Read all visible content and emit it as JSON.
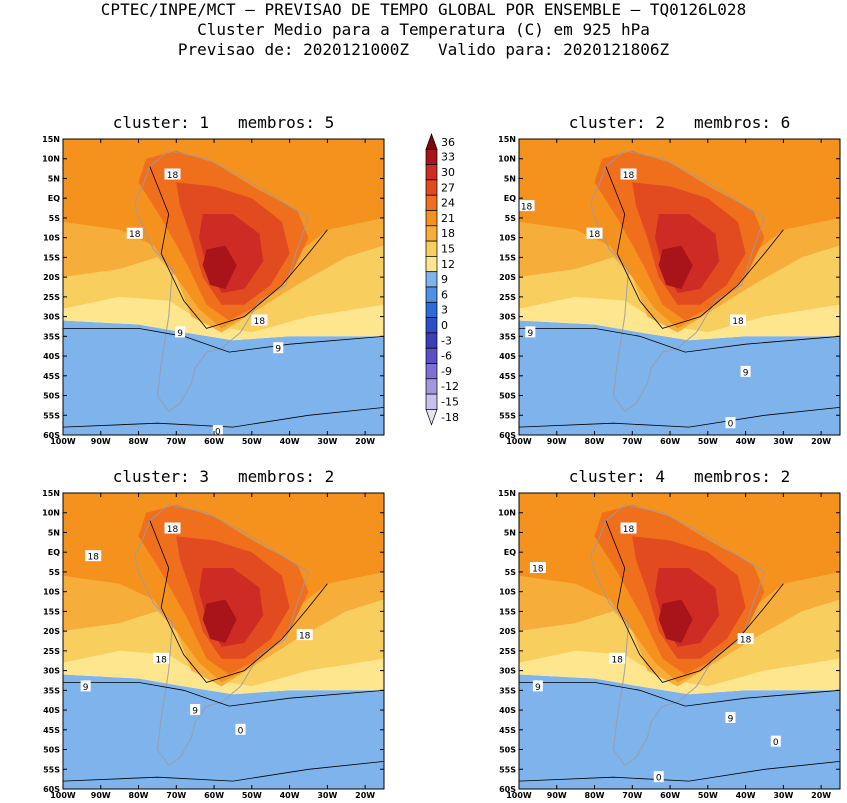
{
  "header": {
    "line1": "CPTEC/INPE/MCT – PREVISAO DE TEMPO GLOBAL POR ENSEMBLE – TQ0126L028",
    "line2": "Cluster Medio para a Temperatura (C) em 925 hPa",
    "line3": "Previsao de: 2020121000Z   Valido para: 2020121806Z"
  },
  "axes": {
    "lat_labels": [
      "15N",
      "10N",
      "5N",
      "EQ",
      "5S",
      "10S",
      "15S",
      "20S",
      "25S",
      "30S",
      "35S",
      "40S",
      "45S",
      "50S",
      "55S",
      "60S"
    ],
    "lon_labels": [
      "100W",
      "90W",
      "80W",
      "70W",
      "60W",
      "50W",
      "40W",
      "30W",
      "20W"
    ]
  },
  "colorbar": {
    "labels": [
      "36",
      "33",
      "30",
      "27",
      "24",
      "21",
      "18",
      "15",
      "12",
      "9",
      "6",
      "3",
      "0",
      "-3",
      "-6",
      "-9",
      "-12",
      "-15",
      "-18"
    ],
    "colors": [
      "#7a0a0a",
      "#a8141a",
      "#cf2b25",
      "#e24a1f",
      "#ef6f1d",
      "#f5921e",
      "#f7ad3a",
      "#f8cf5e",
      "#fde68e",
      "#7fb3ec",
      "#4f8fe6",
      "#2d6bd6",
      "#2a4fc6",
      "#3a3fb4",
      "#5a4fc6",
      "#7d6fd8",
      "#a496e3",
      "#c9c0ef",
      "#e7e2f8"
    ]
  },
  "panels": [
    {
      "title": "cluster: 1   membros: 5",
      "contour_labels": [
        "18",
        "18",
        "18",
        "9",
        "9",
        "0"
      ]
    },
    {
      "title": "cluster: 2   membros: 6",
      "contour_labels": [
        "18",
        "18",
        "18",
        "18",
        "9",
        "9",
        "0"
      ]
    },
    {
      "title": "cluster: 3   membros: 2",
      "contour_labels": [
        "18",
        "18",
        "18",
        "18",
        "9",
        "9",
        "0"
      ]
    },
    {
      "title": "cluster: 4   membros: 2",
      "contour_labels": [
        "18",
        "18",
        "18",
        "18",
        "9",
        "9",
        "0",
        "0"
      ]
    }
  ]
}
